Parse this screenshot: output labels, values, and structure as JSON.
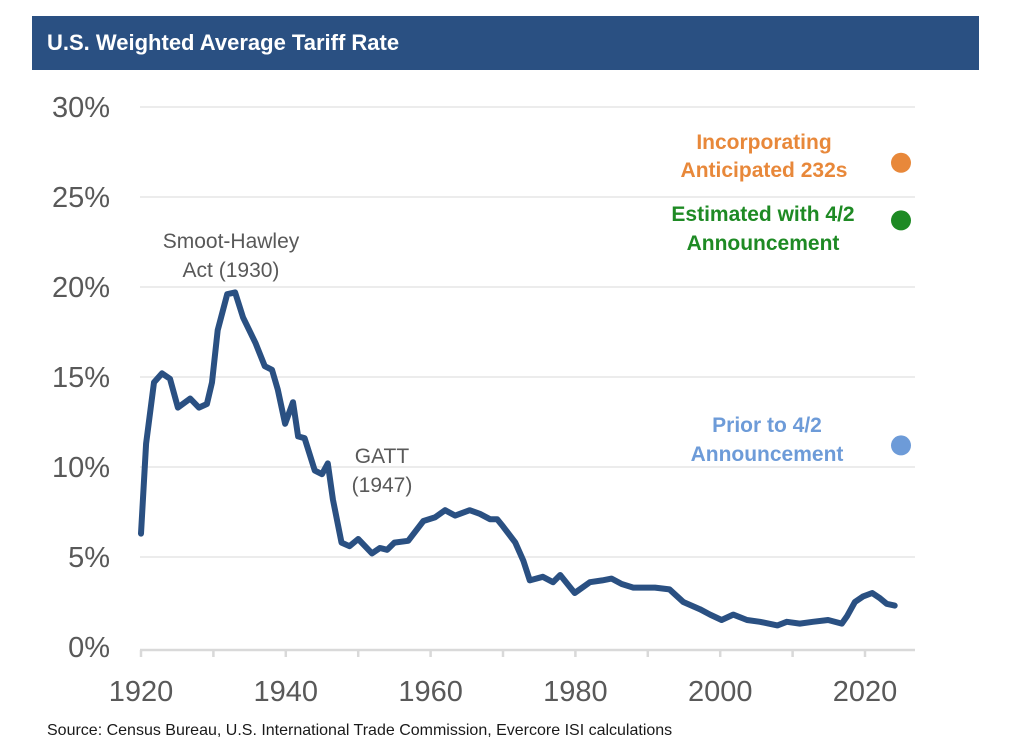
{
  "header": {
    "title": "U.S. Weighted Average Tariff Rate"
  },
  "source": "Source: Census Bureau, U.S. International Trade Commission, Evercore ISI calculations",
  "colors": {
    "header_bg": "#2a5082",
    "line": "#2a5082",
    "orange": "#e8883a",
    "green": "#1e8a24",
    "blue": "#6d9bd8",
    "grid": "#ececec",
    "axis": "#d9d9d9",
    "tick_text": "#595959"
  },
  "chart_data": {
    "type": "line",
    "title": "U.S. Weighted Average Tariff Rate",
    "xlabel": "",
    "ylabel": "",
    "xlim": [
      1920,
      2027
    ],
    "ylim": [
      0,
      30
    ],
    "grid": true,
    "x_ticks": [
      1920,
      1940,
      1960,
      1980,
      2000,
      2020
    ],
    "x_tick_labels": [
      "1920",
      "1940",
      "1960",
      "1980",
      "2000",
      "2020"
    ],
    "x_minor_ticks": [
      1930,
      1950,
      1970,
      1990,
      2010
    ],
    "y_ticks": [
      0,
      5,
      10,
      15,
      20,
      25,
      30
    ],
    "y_tick_labels": [
      "0%",
      "5%",
      "10%",
      "15%",
      "20%",
      "25%",
      "30%"
    ],
    "series": [
      {
        "name": "U.S. Weighted Average Tariff Rate",
        "x": [
          1920,
          1920.7,
          1921.8,
          1922.9,
          1924,
          1925.1,
          1926.8,
          1928,
          1929.1,
          1929.8,
          1930.6,
          1931.9,
          1933,
          1934.1,
          1935.8,
          1937.1,
          1938.1,
          1938.9,
          1939.9,
          1941,
          1941.7,
          1942.6,
          1944,
          1945,
          1945.8,
          1946.5,
          1947.7,
          1948.8,
          1950,
          1951.9,
          1953,
          1954,
          1955,
          1956.9,
          1959,
          1960.6,
          1962,
          1963.4,
          1965.4,
          1966.8,
          1968.2,
          1969.2,
          1970,
          1971.7,
          1972.8,
          1973.7,
          1975.5,
          1976.9,
          1977.9,
          1979.9,
          1982,
          1983.7,
          1985,
          1986.4,
          1988,
          1989.9,
          1991,
          1993,
          1994.9,
          1997.2,
          1998.6,
          2000.2,
          2001.8,
          2003.7,
          2005.5,
          2007.9,
          2009.2,
          2011,
          2012.8,
          2014.9,
          2016.8,
          2017.5,
          2018.6,
          2019.7,
          2021,
          2022.1,
          2023,
          2024.1
        ],
        "values": [
          6.3,
          11.3,
          14.7,
          15.2,
          14.9,
          13.3,
          13.8,
          13.3,
          13.5,
          14.7,
          17.6,
          19.6,
          19.7,
          18.3,
          16.9,
          15.6,
          15.4,
          14.3,
          12.4,
          13.6,
          11.7,
          11.6,
          9.8,
          9.6,
          10.2,
          8.2,
          5.8,
          5.6,
          6.0,
          5.2,
          5.5,
          5.4,
          5.8,
          5.9,
          7.0,
          7.2,
          7.6,
          7.3,
          7.6,
          7.4,
          7.1,
          7.1,
          6.7,
          5.8,
          4.8,
          3.7,
          3.9,
          3.6,
          4.0,
          3.0,
          3.6,
          3.7,
          3.8,
          3.5,
          3.3,
          3.3,
          3.3,
          3.2,
          2.5,
          2.1,
          1.8,
          1.5,
          1.8,
          1.5,
          1.4,
          1.2,
          1.4,
          1.3,
          1.4,
          1.5,
          1.3,
          1.7,
          2.5,
          2.8,
          3.0,
          2.7,
          2.4,
          2.3
        ]
      }
    ],
    "points": [
      {
        "name": "Incorporating Anticipated 232s",
        "label_lines": [
          "Incorporating",
          "Anticipated 232s"
        ],
        "x": 2025,
        "value": 26.9,
        "color": "#e8883a"
      },
      {
        "name": "Estimated with 4/2 Announcement",
        "label_lines": [
          "Estimated with 4/2",
          "Announcement"
        ],
        "x": 2025,
        "value": 23.7,
        "color": "#1e8a24"
      },
      {
        "name": "Prior to 4/2 Announcement",
        "label_lines": [
          "Prior to 4/2",
          "Announcement"
        ],
        "x": 2025,
        "value": 11.2,
        "color": "#6d9bd8"
      }
    ],
    "annotations": [
      {
        "name": "smoot-hawley",
        "lines": [
          "Smoot-Hawley",
          "Act (1930)"
        ]
      },
      {
        "name": "gatt",
        "lines": [
          "GATT",
          "(1947)"
        ]
      }
    ]
  }
}
